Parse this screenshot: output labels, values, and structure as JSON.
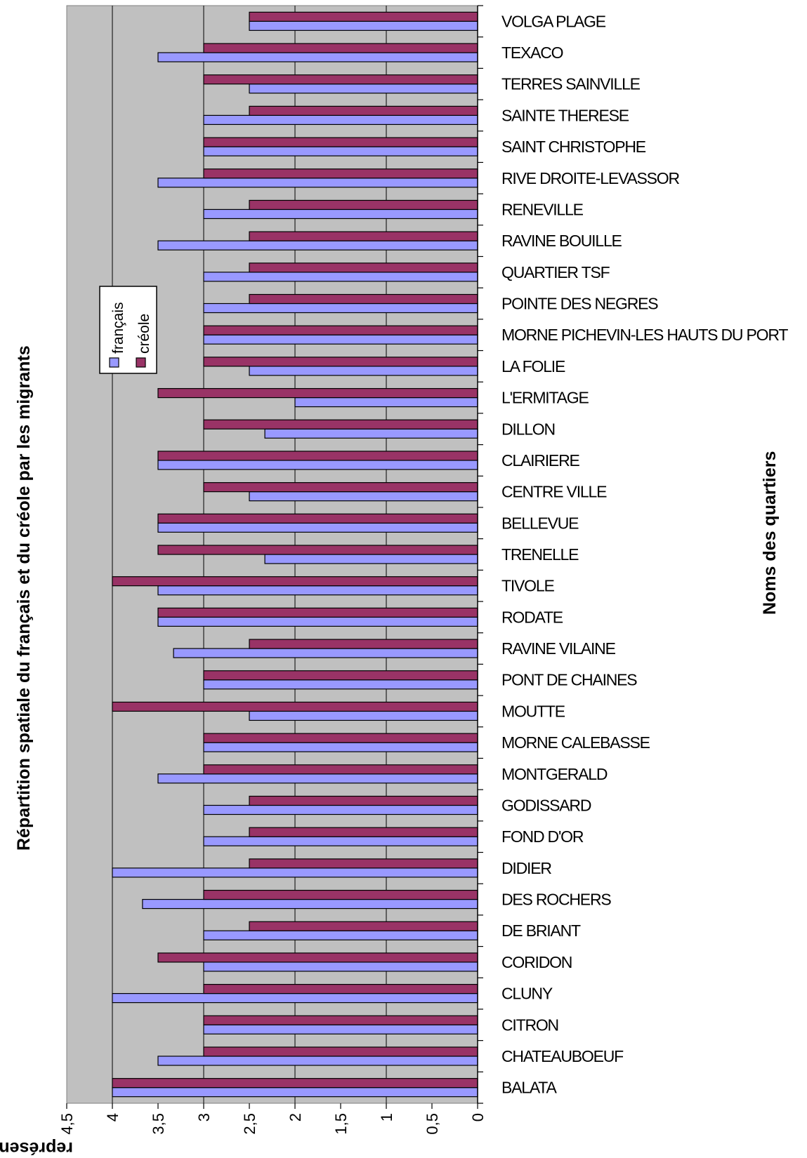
{
  "chart_data": {
    "type": "bar",
    "orientation": "horizontal",
    "title": "Répartition spatiale du français et du créole par les migrants",
    "xlabel": "Noms des quartiers",
    "ylabel": "représentation des niveaux de compétence",
    "ylim": [
      0,
      4.5
    ],
    "tick_labels": [
      "0",
      "0,5",
      "1",
      "1,5",
      "2",
      "2,5",
      "3",
      "3,5",
      "4",
      "4,5"
    ],
    "grid": true,
    "legend_position": "top-left",
    "categories": [
      "BALATA",
      "CHATEAUBOEUF",
      "CITRON",
      "CLUNY",
      "CORIDON",
      "DE BRIANT",
      "DES ROCHERS",
      "DIDIER",
      "FOND D'OR",
      "GODISSARD",
      "MONTGERALD",
      "MORNE CALEBASSE",
      "MOUTTE",
      "PONT DE CHAINES",
      "RAVINE VILAINE",
      "RODATE",
      "TIVOLE",
      "TRENELLE",
      "BELLEVUE",
      "CENTRE VILLE",
      "CLAIRIERE",
      "DILLON",
      "L'ERMITAGE",
      "LA FOLIE",
      "MORNE PICHEVIN-LES HAUTS DU PORT",
      "POINTE DES NEGRES",
      "QUARTIER TSF",
      "RAVINE BOUILLE",
      "RENEVILLE",
      "RIVE DROITE-LEVASSOR",
      "SAINT CHRISTOPHE",
      "SAINTE THERESE",
      "TERRES SAINVILLE",
      "TEXACO",
      "VOLGA PLAGE"
    ],
    "series": [
      {
        "name": "français",
        "color": "#9999ff",
        "values": [
          4,
          3.5,
          3,
          4,
          3,
          3,
          3.67,
          4,
          3,
          3,
          3.5,
          3,
          2.5,
          3,
          3.33,
          3.5,
          3.5,
          2.33,
          3.5,
          2.5,
          3.5,
          2.33,
          2,
          2.5,
          3,
          3,
          3,
          3.5,
          3,
          3.5,
          3,
          3,
          2.5,
          3.5,
          2.5
        ]
      },
      {
        "name": "créole",
        "color": "#993366",
        "values": [
          4,
          3,
          3,
          3,
          3.5,
          2.5,
          3,
          2.5,
          2.5,
          2.5,
          3,
          3,
          4,
          3,
          2.5,
          3.5,
          4,
          3.5,
          3.5,
          3,
          3.5,
          3,
          3.5,
          3,
          3,
          2.5,
          2.5,
          2.5,
          2.5,
          3,
          3,
          2.5,
          3,
          3,
          2.5
        ]
      }
    ],
    "plot_background": "#c0c0c0"
  }
}
